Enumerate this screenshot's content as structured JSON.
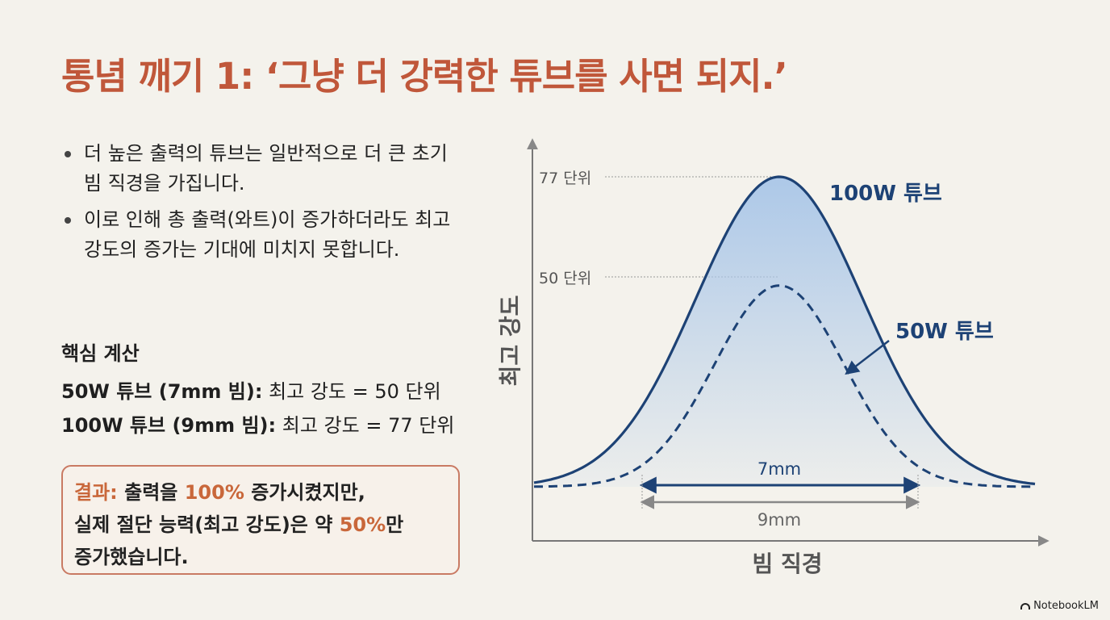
{
  "title": "통념 깨기 1: ‘그냥 더 강력한 튜브를 사면 되지.’",
  "bullets": [
    "더 높은 출력의 튜브는 일반적으로 더 큰 초기 빔 직경을 가집니다.",
    "이로 인해 총 출력(와트)이 증가하더라도 최고 강도의 증가는 기대에 미치지 못합니다."
  ],
  "calc": {
    "heading": "핵심 계산",
    "line1_bold": "50W 튜브 (7mm 빔):",
    "line1_rest": " 최고 강도 = 50 단위",
    "line2_bold": "100W 튜브 (9mm 빔):",
    "line2_rest": " 최고 강도 = 77 단위"
  },
  "result": {
    "label": "결과:",
    "p1": " 출력을 ",
    "pct1": "100%",
    "p2": " 증가시켰지만,",
    "p3": "실제 절단 능력(최고 강도)은 약 ",
    "pct2": "50%",
    "p4": "만",
    "p5": "증가했습니다."
  },
  "chart_data": {
    "type": "line",
    "ylabel": "최고 강도",
    "xlabel": "빔 직경",
    "series": [
      {
        "name": "100W 튜브",
        "peak": 77,
        "width_mm": 9,
        "style": "solid",
        "color": "#1d4275"
      },
      {
        "name": "50W 튜브",
        "peak": 50,
        "width_mm": 7,
        "style": "dashed",
        "color": "#1d4275"
      }
    ],
    "ref_labels": [
      "77 단위",
      "50 단위"
    ],
    "width_labels": [
      "7mm",
      "9mm"
    ],
    "colors": {
      "curve": "#1d4275",
      "fill": "#a9c6e8",
      "grid": "#9a9a9a"
    }
  },
  "logo": "NotebookLM"
}
